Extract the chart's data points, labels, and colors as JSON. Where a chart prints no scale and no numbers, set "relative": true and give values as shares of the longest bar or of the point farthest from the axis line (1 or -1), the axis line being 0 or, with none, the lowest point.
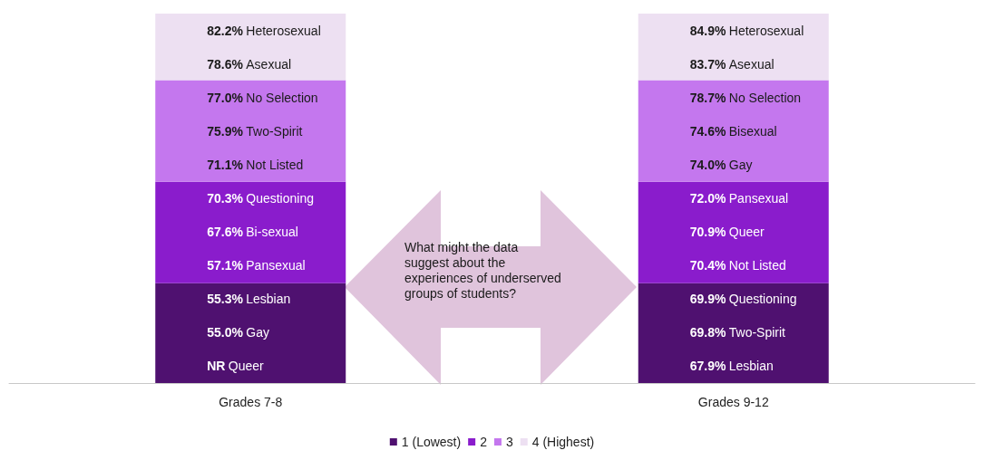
{
  "chart_data": {
    "type": "bar",
    "stacked": true,
    "relative": true,
    "categories": [
      "Grades 7-8",
      "Grades 9-12"
    ],
    "series": [
      {
        "name": "1 (Lowest)",
        "color": "#4f1170",
        "values": [
          0.27,
          0.27
        ]
      },
      {
        "name": "2",
        "color": "#8a1ccc",
        "values": [
          0.275,
          0.275
        ]
      },
      {
        "name": "3",
        "color": "#c477ee",
        "values": [
          0.275,
          0.275
        ]
      },
      {
        "name": "4 (Highest)",
        "color": "#ede0f2",
        "values": [
          0.18,
          0.18
        ]
      }
    ],
    "legend": "bottom",
    "grid": false,
    "annotations": [
      "82.2% Heterosexual",
      "78.6% Asexual",
      "77.0% No Selection",
      "75.9% Two-Spirit",
      "71.1% Not Listed",
      "70.3% Questioning",
      "67.6% Bi-sexual",
      "57.1% Pansexual",
      "55.3% Lesbian",
      "55.0% Gay",
      "NR Queer",
      "84.9% Heterosexual",
      "83.7% Asexual",
      "78.7% No Selection",
      "74.6% Bisexual",
      "74.0% Gay",
      "72.0% Pansexual",
      "70.9% Queer",
      "70.4% Not Listed",
      "69.9% Questioning",
      "69.8% Two-Spirit",
      "67.9% Lesbian",
      "What might the data suggest about the experiences of underserved groups of students?"
    ]
  }
}
